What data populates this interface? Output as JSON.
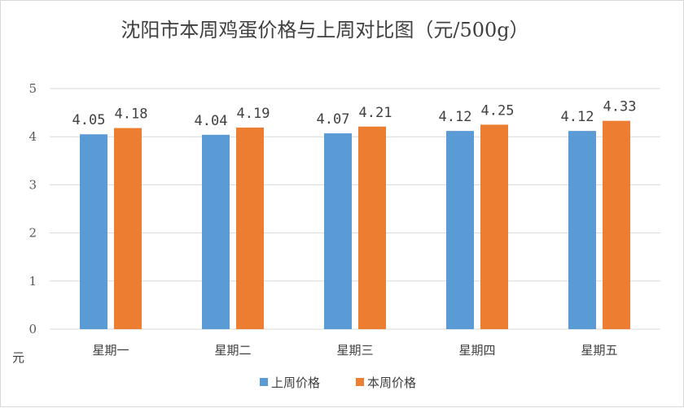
{
  "chart_data": {
    "type": "bar",
    "title": "沈阳市本周鸡蛋价格与上周对比图（元/500g）",
    "ylabel": "元",
    "categories": [
      "星期一",
      "星期二",
      "星期三",
      "星期四",
      "星期五"
    ],
    "series": [
      {
        "name": "上周价格",
        "color": "#5b9bd5",
        "values": [
          4.05,
          4.04,
          4.07,
          4.12,
          4.12
        ]
      },
      {
        "name": "本周价格",
        "color": "#ed7d31",
        "values": [
          4.18,
          4.19,
          4.21,
          4.25,
          4.33
        ]
      }
    ],
    "ylim": [
      0,
      5
    ],
    "yticks": [
      0,
      1,
      2,
      3,
      4,
      5
    ],
    "grid": true,
    "legend": "bottom"
  }
}
